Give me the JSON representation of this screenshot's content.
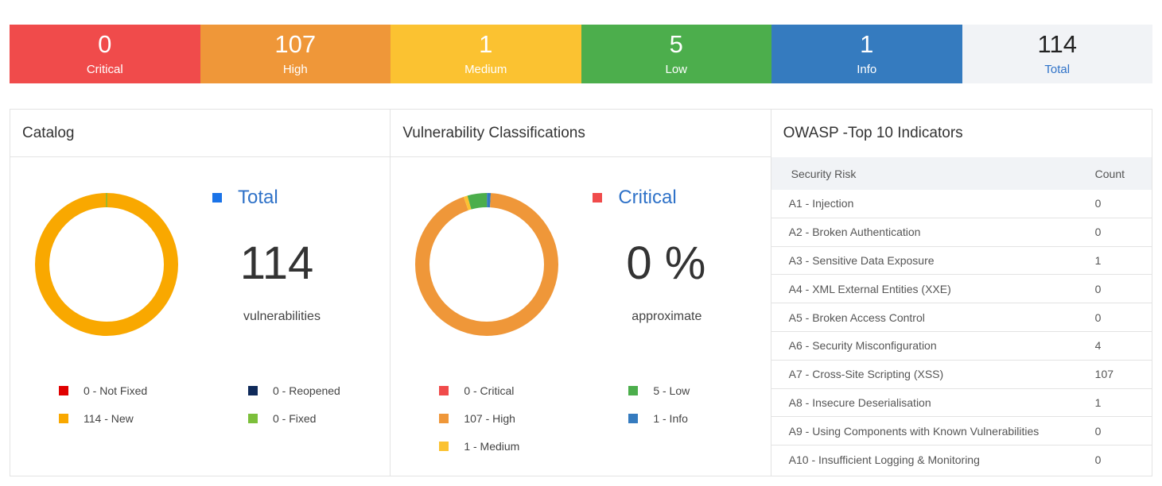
{
  "summary": {
    "tiles": [
      {
        "count": "0",
        "label": "Critical",
        "color": "#f04b4b"
      },
      {
        "count": "107",
        "label": "High",
        "color": "#ef9739"
      },
      {
        "count": "1",
        "label": "Medium",
        "color": "#fbc231"
      },
      {
        "count": "5",
        "label": "Low",
        "color": "#4cae4c"
      },
      {
        "count": "1",
        "label": "Info",
        "color": "#357bbf"
      },
      {
        "count": "114",
        "label": "Total",
        "color": "#f1f3f6"
      }
    ]
  },
  "catalog": {
    "title": "Catalog",
    "legend_title": "Total",
    "legend_color": "#1a73e8",
    "big_number": "114",
    "subtitle": "vulnerabilities",
    "segments": [
      {
        "label": "Not Fixed",
        "value": 0,
        "color": "#e00000"
      },
      {
        "label": "New",
        "value": 114,
        "color": "#f9a800"
      },
      {
        "label": "Reopened",
        "value": 0,
        "color": "#0f2a5a"
      },
      {
        "label": "Fixed",
        "value": 0,
        "color": "#7cbf3b"
      }
    ],
    "legend_items": [
      {
        "text": "0 - Not Fixed",
        "color": "#e00000"
      },
      {
        "text": "0 - Reopened",
        "color": "#0f2a5a"
      },
      {
        "text": "114 - New",
        "color": "#f9a800"
      },
      {
        "text": "0 - Fixed",
        "color": "#7cbf3b"
      }
    ]
  },
  "classifications": {
    "title": "Vulnerability Classifications",
    "legend_title": "Critical",
    "legend_color": "#f04b4b",
    "big_number": "0 %",
    "subtitle": "approximate",
    "segments": [
      {
        "label": "Critical",
        "value": 0,
        "color": "#f04b4b"
      },
      {
        "label": "High",
        "value": 107,
        "color": "#ef9739"
      },
      {
        "label": "Medium",
        "value": 1,
        "color": "#fbc231"
      },
      {
        "label": "Low",
        "value": 5,
        "color": "#4cae4c"
      },
      {
        "label": "Info",
        "value": 1,
        "color": "#357bbf"
      }
    ],
    "legend_items": [
      {
        "text": "0 - Critical",
        "color": "#f04b4b"
      },
      {
        "text": "5 - Low",
        "color": "#4cae4c"
      },
      {
        "text": "107 - High",
        "color": "#ef9739"
      },
      {
        "text": "1 - Info",
        "color": "#357bbf"
      },
      {
        "text": "1 - Medium",
        "color": "#fbc231"
      }
    ]
  },
  "owasp": {
    "title": "OWASP -Top 10 Indicators",
    "col_risk": "Security Risk",
    "col_count": "Count",
    "rows": [
      {
        "risk": "A1 - Injection",
        "count": "0"
      },
      {
        "risk": "A2 - Broken Authentication",
        "count": "0"
      },
      {
        "risk": "A3 - Sensitive Data Exposure",
        "count": "1"
      },
      {
        "risk": "A4 - XML External Entities (XXE)",
        "count": "0"
      },
      {
        "risk": "A5 - Broken Access Control",
        "count": "0"
      },
      {
        "risk": "A6 - Security Misconfiguration",
        "count": "4"
      },
      {
        "risk": "A7 - Cross-Site Scripting (XSS)",
        "count": "107"
      },
      {
        "risk": "A8 - Insecure Deserialisation",
        "count": "1"
      },
      {
        "risk": "A9 - Using Components with Known Vulnerabilities",
        "count": "0"
      },
      {
        "risk": "A10 - Insufficient Logging & Monitoring",
        "count": "0"
      }
    ]
  }
}
